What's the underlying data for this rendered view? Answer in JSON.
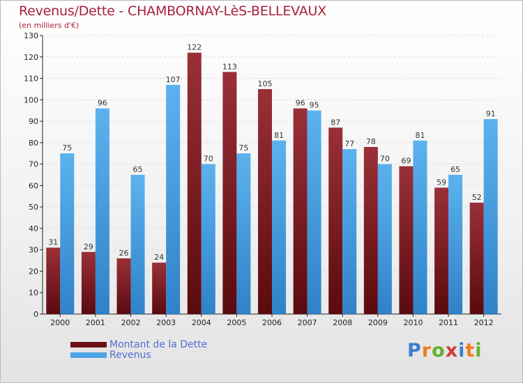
{
  "header": {
    "title": "Revenus/Dette - CHAMBORNAY-LèS-BELLEVAUX",
    "subtitle": "(en milliers d'€)"
  },
  "colors": {
    "title": "#a8203a",
    "dette": "#7a1e24",
    "revenus": "#4aa4e4",
    "legend_text": "#4f6fd3"
  },
  "chart_data": {
    "type": "bar",
    "categories": [
      "2000",
      "2001",
      "2002",
      "2003",
      "2004",
      "2005",
      "2006",
      "2007",
      "2008",
      "2009",
      "2010",
      "2011",
      "2012"
    ],
    "series": [
      {
        "name": "Montant de la Dette",
        "values": [
          31,
          29,
          26,
          24,
          122,
          113,
          105,
          96,
          87,
          78,
          69,
          59,
          52
        ]
      },
      {
        "name": "Revenus",
        "values": [
          75,
          96,
          65,
          107,
          70,
          75,
          81,
          95,
          77,
          70,
          81,
          65,
          91
        ]
      }
    ],
    "ylim": [
      0,
      130
    ],
    "yticks": [
      0,
      10,
      20,
      30,
      40,
      50,
      60,
      70,
      80,
      90,
      100,
      110,
      120,
      130
    ],
    "grid": true,
    "legend_position": "bottom-left"
  },
  "logo": {
    "text": "Proxiti",
    "letter_colors": [
      "#3c7fd0",
      "#f07c1b",
      "#63b22f",
      "#d23a3a",
      "#3c7fd0",
      "#f07c1b",
      "#63b22f"
    ]
  }
}
